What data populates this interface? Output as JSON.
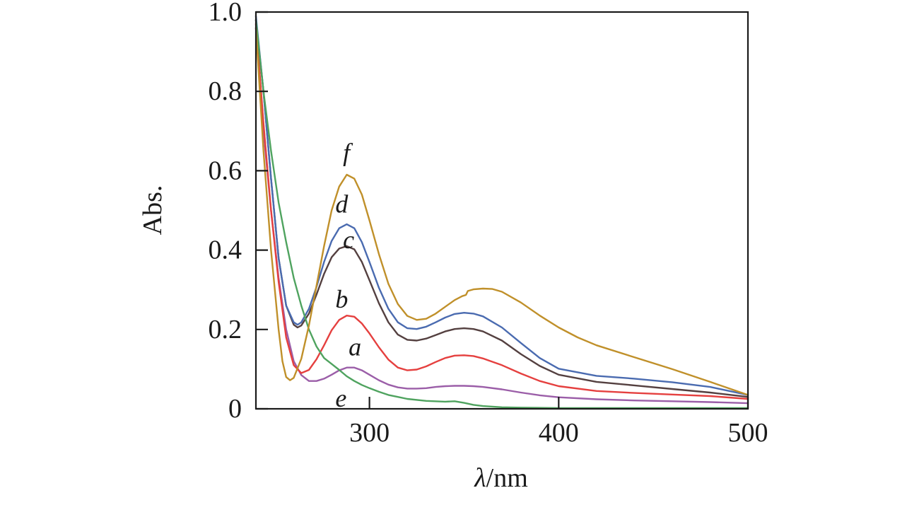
{
  "chart_data": {
    "type": "line",
    "title": "",
    "xlabel_symbol": "λ",
    "xlabel_unit": "/nm",
    "ylabel": "Abs.",
    "xlim": [
      240,
      500
    ],
    "ylim": [
      0,
      1.0
    ],
    "x_ticks": [
      300,
      400,
      500
    ],
    "x_tick_labels": [
      "300",
      "400",
      "500"
    ],
    "y_ticks": [
      0,
      0.2,
      0.4,
      0.6,
      0.8,
      1.0
    ],
    "y_tick_labels": [
      "0",
      "0.2",
      "0.4",
      "0.6",
      "0.8",
      "1.0"
    ],
    "grid": false,
    "legend": "curve labels placed next to each curve",
    "series": [
      {
        "name": "a",
        "color": "#9b5ea8",
        "label_at": [
          289,
          0.135
        ],
        "points": [
          [
            240,
            0.96
          ],
          [
            244,
            0.7
          ],
          [
            248,
            0.5
          ],
          [
            252,
            0.33
          ],
          [
            256,
            0.2
          ],
          [
            260,
            0.12
          ],
          [
            264,
            0.085
          ],
          [
            268,
            0.07
          ],
          [
            272,
            0.07
          ],
          [
            276,
            0.076
          ],
          [
            280,
            0.086
          ],
          [
            284,
            0.097
          ],
          [
            288,
            0.104
          ],
          [
            292,
            0.104
          ],
          [
            296,
            0.097
          ],
          [
            300,
            0.086
          ],
          [
            305,
            0.072
          ],
          [
            310,
            0.061
          ],
          [
            315,
            0.054
          ],
          [
            320,
            0.051
          ],
          [
            325,
            0.051
          ],
          [
            330,
            0.052
          ],
          [
            335,
            0.055
          ],
          [
            340,
            0.057
          ],
          [
            345,
            0.058
          ],
          [
            350,
            0.058
          ],
          [
            355,
            0.057
          ],
          [
            360,
            0.055
          ],
          [
            370,
            0.049
          ],
          [
            380,
            0.041
          ],
          [
            390,
            0.034
          ],
          [
            400,
            0.029
          ],
          [
            420,
            0.024
          ],
          [
            440,
            0.021
          ],
          [
            460,
            0.019
          ],
          [
            480,
            0.017
          ],
          [
            500,
            0.014
          ]
        ]
      },
      {
        "name": "b",
        "color": "#e5403f",
        "label_at": [
          282,
          0.255
        ],
        "points": [
          [
            240,
            0.97
          ],
          [
            244,
            0.72
          ],
          [
            248,
            0.5
          ],
          [
            252,
            0.32
          ],
          [
            256,
            0.18
          ],
          [
            260,
            0.11
          ],
          [
            264,
            0.09
          ],
          [
            268,
            0.098
          ],
          [
            272,
            0.125
          ],
          [
            276,
            0.16
          ],
          [
            280,
            0.198
          ],
          [
            284,
            0.224
          ],
          [
            288,
            0.235
          ],
          [
            292,
            0.232
          ],
          [
            296,
            0.215
          ],
          [
            300,
            0.19
          ],
          [
            305,
            0.155
          ],
          [
            310,
            0.124
          ],
          [
            315,
            0.104
          ],
          [
            320,
            0.097
          ],
          [
            325,
            0.099
          ],
          [
            330,
            0.107
          ],
          [
            335,
            0.118
          ],
          [
            340,
            0.128
          ],
          [
            345,
            0.134
          ],
          [
            350,
            0.135
          ],
          [
            355,
            0.133
          ],
          [
            360,
            0.127
          ],
          [
            370,
            0.11
          ],
          [
            380,
            0.089
          ],
          [
            390,
            0.07
          ],
          [
            400,
            0.057
          ],
          [
            420,
            0.045
          ],
          [
            440,
            0.04
          ],
          [
            460,
            0.036
          ],
          [
            480,
            0.032
          ],
          [
            500,
            0.025
          ]
        ]
      },
      {
        "name": "c",
        "color": "#544040",
        "label_at": [
          286,
          0.405
        ],
        "points": [
          [
            240,
            0.98
          ],
          [
            244,
            0.8
          ],
          [
            248,
            0.58
          ],
          [
            252,
            0.38
          ],
          [
            256,
            0.26
          ],
          [
            260,
            0.212
          ],
          [
            262,
            0.205
          ],
          [
            264,
            0.21
          ],
          [
            268,
            0.24
          ],
          [
            272,
            0.288
          ],
          [
            276,
            0.34
          ],
          [
            280,
            0.382
          ],
          [
            284,
            0.404
          ],
          [
            288,
            0.41
          ],
          [
            292,
            0.402
          ],
          [
            296,
            0.37
          ],
          [
            300,
            0.324
          ],
          [
            305,
            0.266
          ],
          [
            310,
            0.218
          ],
          [
            315,
            0.187
          ],
          [
            320,
            0.174
          ],
          [
            325,
            0.172
          ],
          [
            330,
            0.177
          ],
          [
            335,
            0.186
          ],
          [
            340,
            0.195
          ],
          [
            345,
            0.201
          ],
          [
            350,
            0.203
          ],
          [
            355,
            0.201
          ],
          [
            360,
            0.195
          ],
          [
            370,
            0.172
          ],
          [
            380,
            0.138
          ],
          [
            390,
            0.108
          ],
          [
            400,
            0.086
          ],
          [
            420,
            0.068
          ],
          [
            440,
            0.059
          ],
          [
            460,
            0.05
          ],
          [
            480,
            0.041
          ],
          [
            500,
            0.03
          ]
        ]
      },
      {
        "name": "d",
        "color": "#4a6bb0",
        "label_at": [
          282,
          0.495
        ],
        "points": [
          [
            240,
            0.99
          ],
          [
            244,
            0.8
          ],
          [
            248,
            0.58
          ],
          [
            252,
            0.38
          ],
          [
            256,
            0.26
          ],
          [
            260,
            0.218
          ],
          [
            262,
            0.212
          ],
          [
            264,
            0.218
          ],
          [
            268,
            0.252
          ],
          [
            272,
            0.307
          ],
          [
            276,
            0.37
          ],
          [
            280,
            0.423
          ],
          [
            284,
            0.455
          ],
          [
            288,
            0.465
          ],
          [
            292,
            0.455
          ],
          [
            296,
            0.42
          ],
          [
            300,
            0.37
          ],
          [
            305,
            0.305
          ],
          [
            310,
            0.252
          ],
          [
            315,
            0.218
          ],
          [
            320,
            0.203
          ],
          [
            325,
            0.201
          ],
          [
            330,
            0.207
          ],
          [
            335,
            0.218
          ],
          [
            340,
            0.23
          ],
          [
            345,
            0.239
          ],
          [
            350,
            0.242
          ],
          [
            355,
            0.24
          ],
          [
            360,
            0.233
          ],
          [
            370,
            0.205
          ],
          [
            380,
            0.166
          ],
          [
            390,
            0.128
          ],
          [
            400,
            0.101
          ],
          [
            420,
            0.083
          ],
          [
            440,
            0.076
          ],
          [
            460,
            0.067
          ],
          [
            480,
            0.055
          ],
          [
            500,
            0.035
          ]
        ]
      },
      {
        "name": "e",
        "color": "#4fa35f",
        "label_at": [
          282,
          0.005
        ],
        "points": [
          [
            240,
            0.98
          ],
          [
            244,
            0.8
          ],
          [
            248,
            0.65
          ],
          [
            252,
            0.52
          ],
          [
            256,
            0.42
          ],
          [
            260,
            0.33
          ],
          [
            264,
            0.26
          ],
          [
            268,
            0.2
          ],
          [
            272,
            0.157
          ],
          [
            276,
            0.128
          ],
          [
            280,
            0.113
          ],
          [
            284,
            0.098
          ],
          [
            288,
            0.082
          ],
          [
            292,
            0.07
          ],
          [
            296,
            0.06
          ],
          [
            300,
            0.052
          ],
          [
            305,
            0.043
          ],
          [
            310,
            0.035
          ],
          [
            315,
            0.03
          ],
          [
            320,
            0.025
          ],
          [
            330,
            0.02
          ],
          [
            340,
            0.018
          ],
          [
            345,
            0.019
          ],
          [
            350,
            0.015
          ],
          [
            355,
            0.01
          ],
          [
            360,
            0.007
          ],
          [
            370,
            0.004
          ],
          [
            380,
            0.003
          ],
          [
            400,
            0.002
          ],
          [
            440,
            0.002
          ],
          [
            500,
            0.002
          ]
        ]
      },
      {
        "name": "f",
        "color": "#c0902a",
        "label_at": [
          286,
          0.625
        ],
        "points": [
          [
            240,
            0.96
          ],
          [
            244,
            0.65
          ],
          [
            248,
            0.4
          ],
          [
            252,
            0.2
          ],
          [
            254,
            0.12
          ],
          [
            256,
            0.08
          ],
          [
            258,
            0.072
          ],
          [
            260,
            0.078
          ],
          [
            264,
            0.126
          ],
          [
            268,
            0.21
          ],
          [
            272,
            0.31
          ],
          [
            276,
            0.41
          ],
          [
            280,
            0.5
          ],
          [
            284,
            0.56
          ],
          [
            288,
            0.59
          ],
          [
            292,
            0.58
          ],
          [
            296,
            0.54
          ],
          [
            300,
            0.475
          ],
          [
            305,
            0.39
          ],
          [
            310,
            0.315
          ],
          [
            315,
            0.264
          ],
          [
            320,
            0.234
          ],
          [
            325,
            0.224
          ],
          [
            330,
            0.227
          ],
          [
            335,
            0.24
          ],
          [
            340,
            0.257
          ],
          [
            345,
            0.274
          ],
          [
            349,
            0.284
          ],
          [
            351,
            0.287
          ],
          [
            352,
            0.297
          ],
          [
            355,
            0.301
          ],
          [
            360,
            0.303
          ],
          [
            365,
            0.302
          ],
          [
            370,
            0.295
          ],
          [
            380,
            0.268
          ],
          [
            390,
            0.235
          ],
          [
            400,
            0.205
          ],
          [
            410,
            0.18
          ],
          [
            420,
            0.16
          ],
          [
            440,
            0.13
          ],
          [
            460,
            0.1
          ],
          [
            480,
            0.068
          ],
          [
            500,
            0.035
          ]
        ]
      }
    ]
  }
}
